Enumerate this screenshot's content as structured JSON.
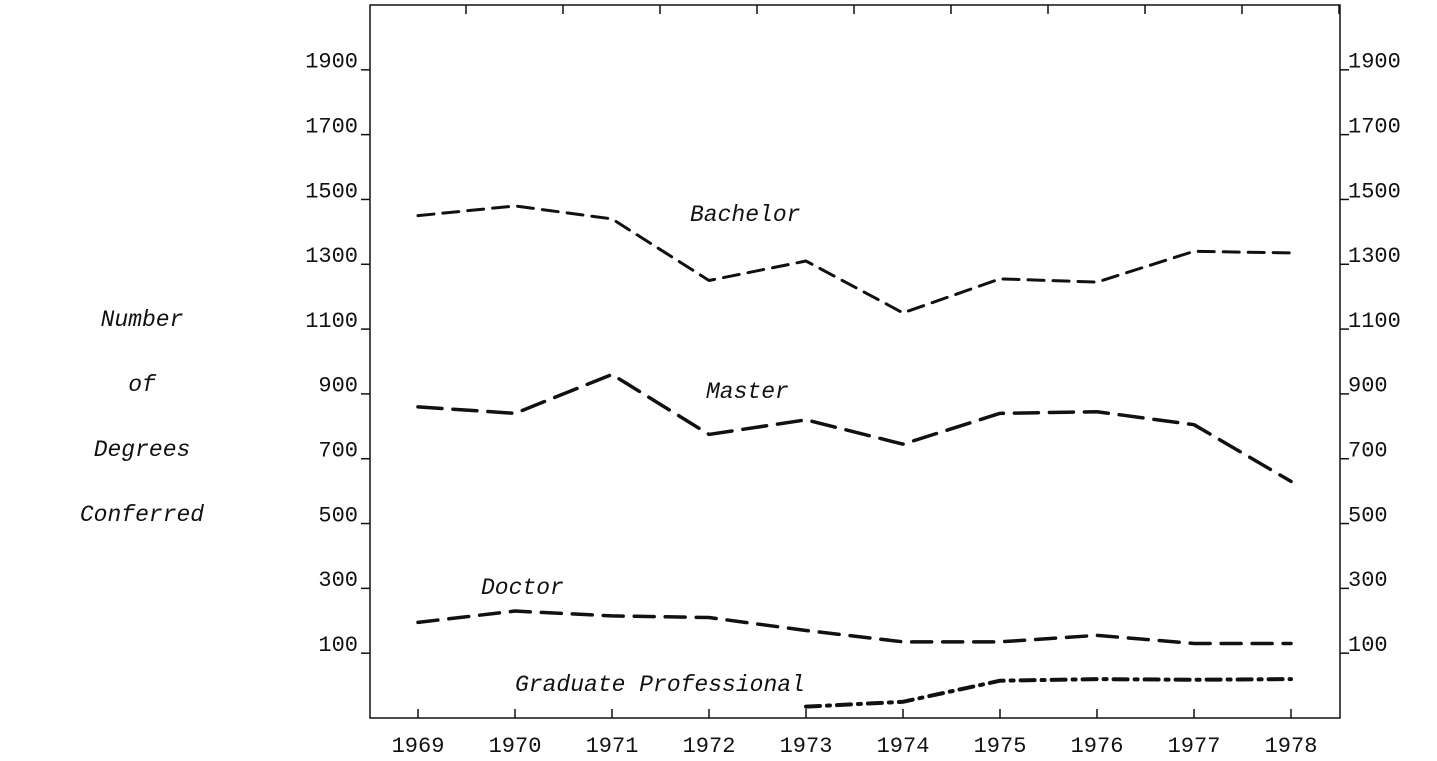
{
  "chart_data": {
    "type": "line",
    "y_label_lines": [
      "Number",
      "of",
      "Degrees",
      "Conferred"
    ],
    "categories": [
      "1969",
      "1970",
      "1971",
      "1972",
      "1973",
      "1974",
      "1975",
      "1976",
      "1977",
      "1978"
    ],
    "series": [
      {
        "name": "Bachelor",
        "color": "#111111",
        "values": [
          1450,
          1480,
          1440,
          1250,
          1310,
          1150,
          1255,
          1245,
          1340,
          1335
        ]
      },
      {
        "name": "Master",
        "color": "#111111",
        "values": [
          860,
          840,
          960,
          775,
          820,
          745,
          840,
          845,
          805,
          630
        ]
      },
      {
        "name": "Doctor",
        "color": "#111111",
        "values": [
          195,
          230,
          215,
          210,
          170,
          135,
          135,
          155,
          130,
          130
        ]
      },
      {
        "name": "Graduate Professional",
        "color": "#111111",
        "values": [
          null,
          null,
          null,
          null,
          -65,
          -50,
          15,
          20,
          18,
          20
        ]
      }
    ],
    "ylim": [
      -100,
      2100
    ],
    "yticks": [
      100,
      300,
      500,
      700,
      900,
      1100,
      1300,
      1500,
      1700,
      1900
    ],
    "y2lim": [
      -100,
      2100
    ],
    "y2ticks": [
      100,
      300,
      500,
      700,
      900,
      1100,
      1300,
      1500,
      1700,
      1900
    ],
    "grid": false
  }
}
